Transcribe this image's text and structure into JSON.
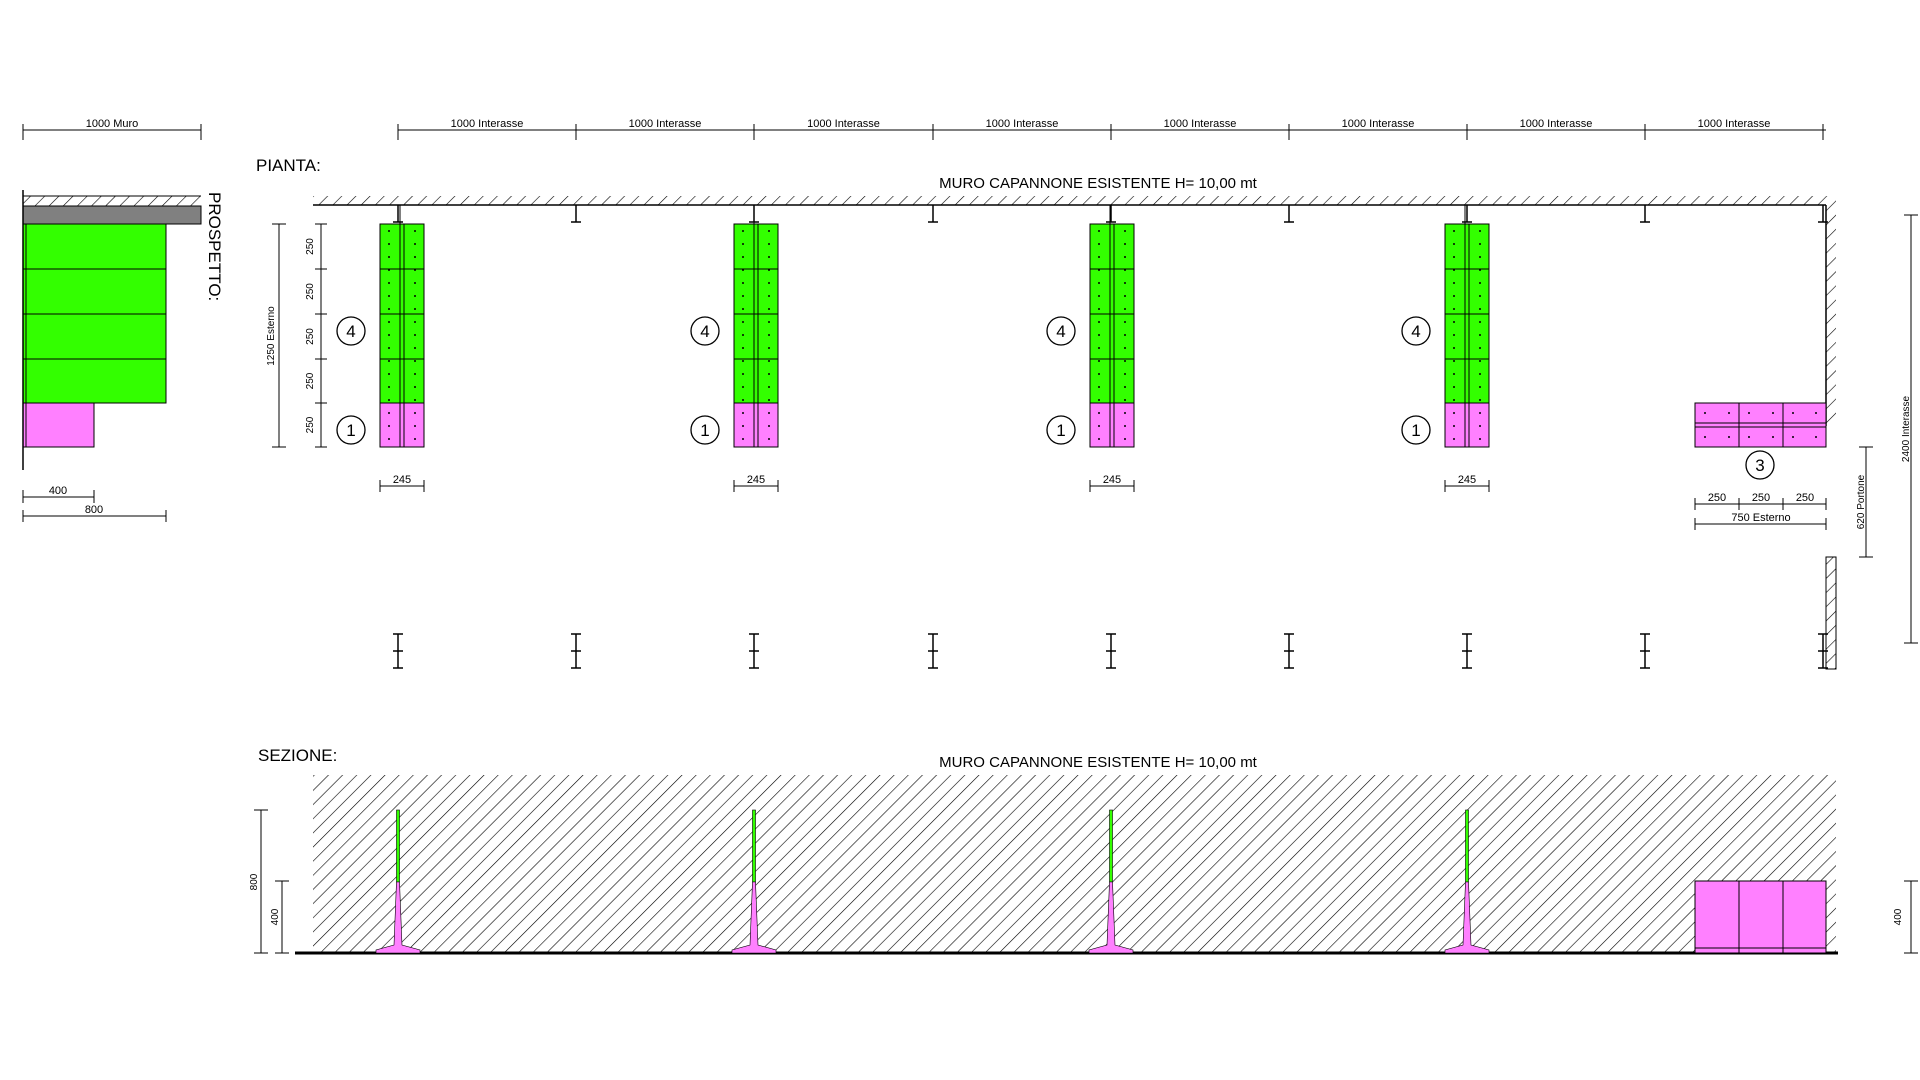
{
  "labels": {
    "pianta": "PIANTA:",
    "sezione": "SEZIONE:",
    "prospetto": "PROSPETTO:",
    "wall_title_plan": "MURO CAPANNONE ESISTENTE H= 10,00 mt",
    "wall_title_section": "MURO CAPANNONE ESISTENTE H= 10,00 mt"
  },
  "dims": {
    "muro": "1000 Muro",
    "interasse": "1000 Interasse",
    "esterno_1250": "1250 Esterno",
    "module": "250",
    "depth": "245",
    "p400": "400",
    "p800": "800",
    "interasse_2400": "2400 Interasse",
    "portone": "620 Portone",
    "esterno_750": "750 Esterno",
    "s800": "800",
    "s400": "400",
    "s400_right": "400"
  },
  "markers": {
    "four": "4",
    "one": "1",
    "three": "3"
  },
  "colors": {
    "green": "#33ff00",
    "magenta": "#ff80ff",
    "grey": "#808080",
    "stroke": "#000000"
  }
}
